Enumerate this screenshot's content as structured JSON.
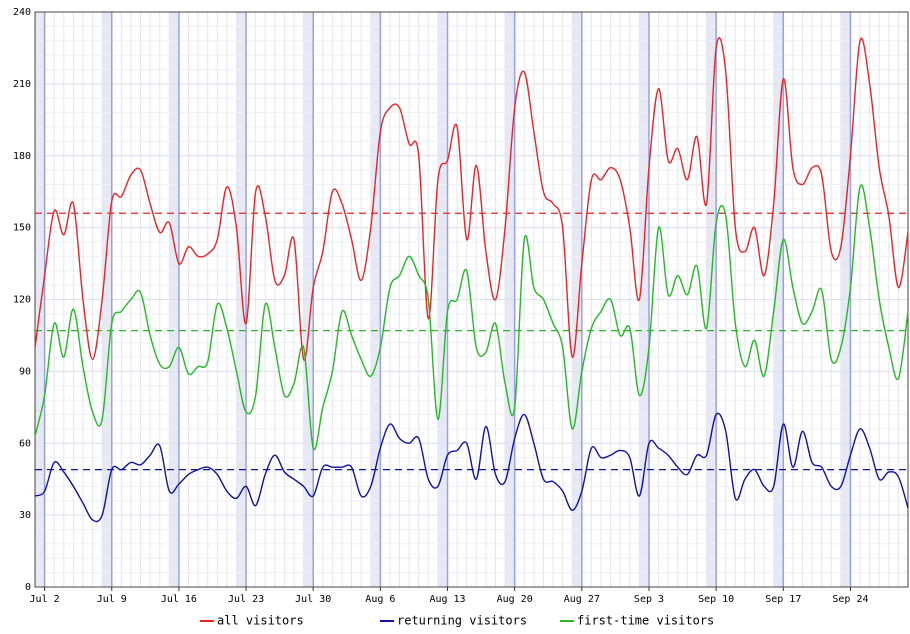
{
  "chart_data": {
    "type": "line",
    "categories": [
      null,
      "Jul 2",
      null,
      null,
      null,
      null,
      null,
      null,
      "Jul 9",
      null,
      null,
      null,
      null,
      null,
      null,
      "Jul 16",
      null,
      null,
      null,
      null,
      null,
      null,
      "Jul 23",
      null,
      null,
      null,
      null,
      null,
      null,
      "Jul 30",
      null,
      null,
      null,
      null,
      null,
      null,
      "Aug 6",
      null,
      null,
      null,
      null,
      null,
      null,
      "Aug 13",
      null,
      null,
      null,
      null,
      null,
      null,
      "Aug 20",
      null,
      null,
      null,
      null,
      null,
      null,
      "Aug 27",
      null,
      null,
      null,
      null,
      null,
      null,
      "Sep 3",
      null,
      null,
      null,
      null,
      null,
      null,
      "Sep 10",
      null,
      null,
      null,
      null,
      null,
      null,
      "Sep 17",
      null,
      null,
      null,
      null,
      null,
      null,
      "Sep 24",
      null,
      null,
      null,
      null,
      null,
      null
    ],
    "series": [
      {
        "name": "all visitors",
        "color": "#ee2222",
        "mean": 156,
        "values": [
          100,
          130,
          157,
          147,
          160,
          120,
          95,
          120,
          161,
          163,
          172,
          174,
          160,
          148,
          152,
          135,
          142,
          138,
          139,
          145,
          167,
          150,
          110,
          165,
          155,
          128,
          130,
          145,
          95,
          125,
          140,
          165,
          160,
          145,
          128,
          150,
          190,
          200,
          200,
          185,
          180,
          112,
          170,
          178,
          192,
          145,
          176,
          140,
          120,
          150,
          200,
          215,
          190,
          165,
          160,
          150,
          96,
          135,
          170,
          170,
          175,
          170,
          150,
          120,
          175,
          208,
          178,
          183,
          170,
          188,
          160,
          225,
          215,
          150,
          140,
          150,
          130,
          160,
          212,
          175,
          168,
          175,
          172,
          140,
          142,
          180,
          228,
          210,
          175,
          155,
          125,
          148
        ]
      },
      {
        "name": "returning visitors",
        "color": "#1111aa",
        "mean": 49,
        "values": [
          38,
          40,
          52,
          48,
          42,
          35,
          28,
          30,
          49,
          49,
          52,
          51,
          55,
          59,
          40,
          43,
          47,
          49,
          50,
          47,
          40,
          37,
          42,
          34,
          47,
          55,
          48,
          45,
          42,
          38,
          50,
          50,
          50,
          50,
          38,
          42,
          58,
          68,
          62,
          60,
          62,
          45,
          42,
          55,
          57,
          60,
          45,
          67,
          47,
          44,
          62,
          72,
          60,
          45,
          44,
          40,
          32,
          40,
          58,
          54,
          55,
          57,
          54,
          38,
          60,
          58,
          55,
          50,
          47,
          55,
          55,
          72,
          65,
          37,
          45,
          49,
          42,
          42,
          68,
          50,
          65,
          52,
          50,
          42,
          42,
          55,
          66,
          58,
          45,
          48,
          46,
          33
        ]
      },
      {
        "name": "first-time visitors",
        "color": "#22bb22",
        "mean": 107,
        "values": [
          63,
          80,
          110,
          96,
          116,
          92,
          73,
          70,
          110,
          115,
          120,
          123,
          105,
          93,
          92,
          100,
          89,
          92,
          94,
          118,
          108,
          90,
          73,
          80,
          118,
          100,
          80,
          85,
          100,
          58,
          75,
          90,
          115,
          105,
          95,
          88,
          100,
          125,
          130,
          138,
          130,
          120,
          70,
          115,
          120,
          132,
          100,
          98,
          110,
          85,
          75,
          145,
          125,
          120,
          110,
          100,
          66,
          90,
          108,
          115,
          120,
          105,
          108,
          80,
          100,
          150,
          122,
          130,
          122,
          134,
          108,
          152,
          155,
          110,
          92,
          103,
          88,
          115,
          145,
          125,
          110,
          115,
          124,
          95,
          100,
          125,
          167,
          150,
          120,
          100,
          87,
          115
        ]
      }
    ],
    "ylim": [
      0,
      240
    ],
    "yticks": [
      0,
      30,
      60,
      90,
      120,
      150,
      180,
      210,
      240
    ],
    "grid": true
  }
}
